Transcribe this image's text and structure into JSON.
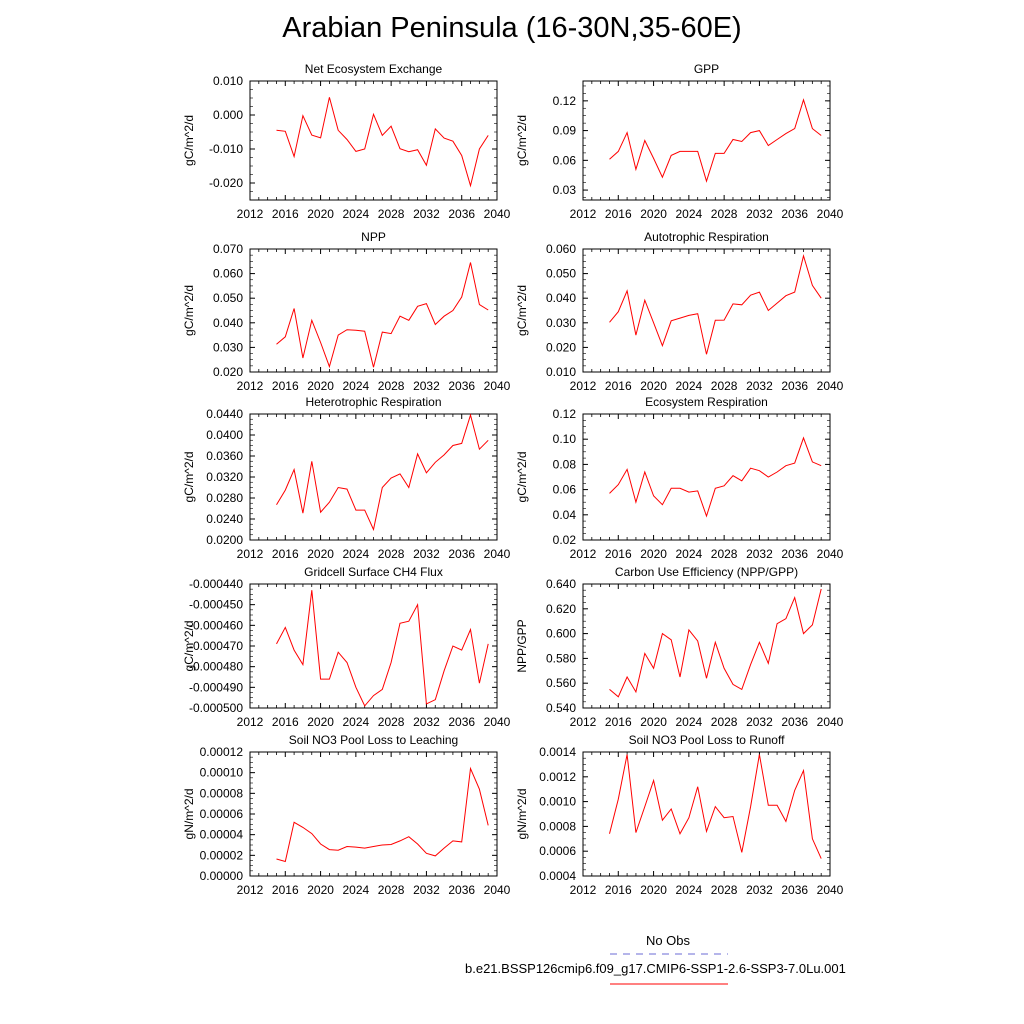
{
  "title": "Arabian Peninsula (16-30N,35-60E)",
  "colors": {
    "model": "#ff0000",
    "obs": "#6b6bd6",
    "axis": "#000000"
  },
  "legend": {
    "obs_label": "No Obs",
    "model_label": "b.e21.BSSP126cmip6.f09_g17.CMIP6-SSP1-2.6-SSP3-7.0Lu.001"
  },
  "chart_data": [
    {
      "type": "line",
      "title": "Net Ecosystem Exchange",
      "ylabel": "gC/m^2/d",
      "xlim": [
        2012,
        2040
      ],
      "ylim": [
        -0.025,
        0.01
      ],
      "xticks": [
        2012,
        2016,
        2020,
        2024,
        2028,
        2032,
        2036,
        2040
      ],
      "xtick_labels": [
        "2012",
        "2016",
        "2020",
        "2024",
        "2028",
        "2032",
        "2036",
        "2040"
      ],
      "yticks": [
        -0.02,
        -0.01,
        0.0,
        0.01
      ],
      "ytick_labels": [
        "-0.020",
        "-0.010",
        "0.000",
        "0.010"
      ],
      "x": [
        2015,
        2016,
        2017,
        2018,
        2019,
        2020,
        2021,
        2022,
        2023,
        2024,
        2025,
        2026,
        2027,
        2028,
        2029,
        2030,
        2031,
        2032,
        2033,
        2034,
        2035,
        2036,
        2037,
        2038,
        2039
      ],
      "series": [
        {
          "values": [
            -0.0045,
            -0.0048,
            -0.0122,
            -0.0002,
            -0.0059,
            -0.0067,
            0.0052,
            -0.0045,
            -0.0072,
            -0.0107,
            -0.01,
            0.0002,
            -0.006,
            -0.0033,
            -0.0099,
            -0.0108,
            -0.0102,
            -0.0148,
            -0.0041,
            -0.0068,
            -0.0077,
            -0.0119,
            -0.0208,
            -0.01,
            -0.006
          ]
        }
      ]
    },
    {
      "type": "line",
      "title": "GPP",
      "ylabel": "gC/m^2/d",
      "xlim": [
        2012,
        2040
      ],
      "ylim": [
        0.02,
        0.14
      ],
      "xticks": [
        2012,
        2016,
        2020,
        2024,
        2028,
        2032,
        2036,
        2040
      ],
      "xtick_labels": [
        "2012",
        "2016",
        "2020",
        "2024",
        "2028",
        "2032",
        "2036",
        "2040"
      ],
      "yticks": [
        0.03,
        0.06,
        0.09,
        0.12
      ],
      "ytick_labels": [
        "0.03",
        "0.06",
        "0.09",
        "0.12"
      ],
      "x": [
        2015,
        2016,
        2017,
        2018,
        2019,
        2020,
        2021,
        2022,
        2023,
        2024,
        2025,
        2026,
        2027,
        2028,
        2029,
        2030,
        2031,
        2032,
        2033,
        2034,
        2035,
        2036,
        2037,
        2038,
        2039
      ],
      "series": [
        {
          "values": [
            0.061,
            0.069,
            0.088,
            0.051,
            0.08,
            0.062,
            0.043,
            0.065,
            0.069,
            0.069,
            0.069,
            0.039,
            0.067,
            0.067,
            0.081,
            0.079,
            0.088,
            0.09,
            0.075,
            0.081,
            0.087,
            0.092,
            0.121,
            0.092,
            0.085
          ]
        }
      ]
    },
    {
      "type": "line",
      "title": "NPP",
      "ylabel": "gC/m^2/d",
      "xlim": [
        2012,
        2040
      ],
      "ylim": [
        0.02,
        0.07
      ],
      "xticks": [
        2012,
        2016,
        2020,
        2024,
        2028,
        2032,
        2036,
        2040
      ],
      "xtick_labels": [
        "2012",
        "2016",
        "2020",
        "2024",
        "2028",
        "2032",
        "2036",
        "2040"
      ],
      "yticks": [
        0.02,
        0.03,
        0.04,
        0.05,
        0.06,
        0.07
      ],
      "ytick_labels": [
        "0.020",
        "0.030",
        "0.040",
        "0.050",
        "0.060",
        "0.070"
      ],
      "x": [
        2015,
        2016,
        2017,
        2018,
        2019,
        2020,
        2021,
        2022,
        2023,
        2024,
        2025,
        2026,
        2027,
        2028,
        2029,
        2030,
        2031,
        2032,
        2033,
        2034,
        2035,
        2036,
        2037,
        2038,
        2039
      ],
      "series": [
        {
          "values": [
            0.0313,
            0.0343,
            0.0458,
            0.0257,
            0.041,
            0.032,
            0.0222,
            0.035,
            0.0372,
            0.037,
            0.0366,
            0.0219,
            0.0362,
            0.0356,
            0.0427,
            0.041,
            0.0467,
            0.0478,
            0.0393,
            0.0427,
            0.045,
            0.0505,
            0.0645,
            0.0474,
            0.0452
          ]
        }
      ]
    },
    {
      "type": "line",
      "title": "Autotrophic Respiration",
      "ylabel": "gC/m^2/d",
      "xlim": [
        2012,
        2040
      ],
      "ylim": [
        0.01,
        0.06
      ],
      "xticks": [
        2012,
        2016,
        2020,
        2024,
        2028,
        2032,
        2036,
        2040
      ],
      "xtick_labels": [
        "2012",
        "2016",
        "2020",
        "2024",
        "2028",
        "2032",
        "2036",
        "2040"
      ],
      "yticks": [
        0.01,
        0.02,
        0.03,
        0.04,
        0.05,
        0.06
      ],
      "ytick_labels": [
        "0.010",
        "0.020",
        "0.030",
        "0.040",
        "0.050",
        "0.060"
      ],
      "x": [
        2015,
        2016,
        2017,
        2018,
        2019,
        2020,
        2021,
        2022,
        2023,
        2024,
        2025,
        2026,
        2027,
        2028,
        2029,
        2030,
        2031,
        2032,
        2033,
        2034,
        2035,
        2036,
        2037,
        2038,
        2039
      ],
      "series": [
        {
          "values": [
            0.0302,
            0.0345,
            0.043,
            0.025,
            0.0392,
            0.03,
            0.0207,
            0.0308,
            0.0319,
            0.033,
            0.0337,
            0.0172,
            0.031,
            0.0311,
            0.0377,
            0.0373,
            0.0412,
            0.0425,
            0.035,
            0.038,
            0.041,
            0.0425,
            0.0572,
            0.0452,
            0.04
          ]
        }
      ]
    },
    {
      "type": "line",
      "title": "Heterotrophic Respiration",
      "ylabel": "gC/m^2/d",
      "xlim": [
        2012,
        2040
      ],
      "ylim": [
        0.02,
        0.044
      ],
      "xticks": [
        2012,
        2016,
        2020,
        2024,
        2028,
        2032,
        2036,
        2040
      ],
      "xtick_labels": [
        "2012",
        "2016",
        "2020",
        "2024",
        "2028",
        "2032",
        "2036",
        "2040"
      ],
      "yticks": [
        0.02,
        0.024,
        0.028,
        0.032,
        0.036,
        0.04,
        0.044
      ],
      "ytick_labels": [
        "0.0200",
        "0.0240",
        "0.0280",
        "0.0320",
        "0.0360",
        "0.0400",
        "0.0440"
      ],
      "x": [
        2015,
        2016,
        2017,
        2018,
        2019,
        2020,
        2021,
        2022,
        2023,
        2024,
        2025,
        2026,
        2027,
        2028,
        2029,
        2030,
        2031,
        2032,
        2033,
        2034,
        2035,
        2036,
        2037,
        2038,
        2039
      ],
      "series": [
        {
          "values": [
            0.0267,
            0.0295,
            0.0334,
            0.0251,
            0.035,
            0.0253,
            0.0272,
            0.03,
            0.0297,
            0.0257,
            0.0257,
            0.022,
            0.03,
            0.0318,
            0.0326,
            0.03,
            0.0364,
            0.0328,
            0.0348,
            0.0362,
            0.038,
            0.0384,
            0.0438,
            0.0373,
            0.039
          ]
        }
      ]
    },
    {
      "type": "line",
      "title": "Ecosystem Respiration",
      "ylabel": "gC/m^2/d",
      "xlim": [
        2012,
        2040
      ],
      "ylim": [
        0.02,
        0.12
      ],
      "xticks": [
        2012,
        2016,
        2020,
        2024,
        2028,
        2032,
        2036,
        2040
      ],
      "xtick_labels": [
        "2012",
        "2016",
        "2020",
        "2024",
        "2028",
        "2032",
        "2036",
        "2040"
      ],
      "yticks": [
        0.02,
        0.04,
        0.06,
        0.08,
        0.1,
        0.12
      ],
      "ytick_labels": [
        "0.02",
        "0.04",
        "0.06",
        "0.08",
        "0.10",
        "0.12"
      ],
      "x": [
        2015,
        2016,
        2017,
        2018,
        2019,
        2020,
        2021,
        2022,
        2023,
        2024,
        2025,
        2026,
        2027,
        2028,
        2029,
        2030,
        2031,
        2032,
        2033,
        2034,
        2035,
        2036,
        2037,
        2038,
        2039
      ],
      "series": [
        {
          "values": [
            0.057,
            0.064,
            0.076,
            0.05,
            0.074,
            0.055,
            0.048,
            0.061,
            0.061,
            0.058,
            0.059,
            0.039,
            0.061,
            0.063,
            0.071,
            0.067,
            0.077,
            0.075,
            0.07,
            0.074,
            0.079,
            0.081,
            0.101,
            0.082,
            0.079
          ]
        }
      ]
    },
    {
      "type": "line",
      "title": "Gridcell Surface CH4 Flux",
      "ylabel": "gC/m^2/d",
      "xlim": [
        2012,
        2040
      ],
      "ylim": [
        -0.0005,
        -0.00044
      ],
      "xticks": [
        2012,
        2016,
        2020,
        2024,
        2028,
        2032,
        2036,
        2040
      ],
      "xtick_labels": [
        "2012",
        "2016",
        "2020",
        "2024",
        "2028",
        "2032",
        "2036",
        "2040"
      ],
      "yticks": [
        -0.0005,
        -0.00049,
        -0.00048,
        -0.00047,
        -0.00046,
        -0.00045,
        -0.00044
      ],
      "ytick_labels": [
        "-0.000500",
        "-0.000490",
        "-0.000480",
        "-0.000470",
        "-0.000460",
        "-0.000450",
        "-0.000440"
      ],
      "x": [
        2015,
        2016,
        2017,
        2018,
        2019,
        2020,
        2021,
        2022,
        2023,
        2024,
        2025,
        2026,
        2027,
        2028,
        2029,
        2030,
        2031,
        2032,
        2033,
        2034,
        2035,
        2036,
        2037,
        2038,
        2039
      ],
      "series": [
        {
          "values": [
            -0.000469,
            -0.000461,
            -0.000472,
            -0.000479,
            -0.000443,
            -0.000486,
            -0.000486,
            -0.000473,
            -0.000478,
            -0.00049,
            -0.000499,
            -0.000494,
            -0.000491,
            -0.000478,
            -0.000459,
            -0.000458,
            -0.00045,
            -0.000498,
            -0.000496,
            -0.000482,
            -0.00047,
            -0.000472,
            -0.000462,
            -0.000488,
            -0.000469
          ]
        }
      ]
    },
    {
      "type": "line",
      "title": "Carbon Use Efficiency (NPP/GPP)",
      "ylabel": "NPP/GPP",
      "xlim": [
        2012,
        2040
      ],
      "ylim": [
        0.54,
        0.64
      ],
      "xticks": [
        2012,
        2016,
        2020,
        2024,
        2028,
        2032,
        2036,
        2040
      ],
      "xtick_labels": [
        "2012",
        "2016",
        "2020",
        "2024",
        "2028",
        "2032",
        "2036",
        "2040"
      ],
      "yticks": [
        0.54,
        0.56,
        0.58,
        0.6,
        0.62,
        0.64
      ],
      "ytick_labels": [
        "0.540",
        "0.560",
        "0.580",
        "0.600",
        "0.620",
        "0.640"
      ],
      "x": [
        2015,
        2016,
        2017,
        2018,
        2019,
        2020,
        2021,
        2022,
        2023,
        2024,
        2025,
        2026,
        2027,
        2028,
        2029,
        2030,
        2031,
        2032,
        2033,
        2034,
        2035,
        2036,
        2037,
        2038,
        2039
      ],
      "series": [
        {
          "values": [
            0.555,
            0.549,
            0.565,
            0.553,
            0.584,
            0.572,
            0.6,
            0.595,
            0.565,
            0.603,
            0.594,
            0.564,
            0.593,
            0.572,
            0.559,
            0.555,
            0.575,
            0.593,
            0.576,
            0.608,
            0.612,
            0.629,
            0.6,
            0.607,
            0.636
          ]
        }
      ]
    },
    {
      "type": "line",
      "title": "Soil NO3 Pool Loss to Leaching",
      "ylabel": "gN/m^2/d",
      "xlim": [
        2012,
        2040
      ],
      "ylim": [
        0.0,
        0.00012
      ],
      "xticks": [
        2012,
        2016,
        2020,
        2024,
        2028,
        2032,
        2036,
        2040
      ],
      "xtick_labels": [
        "2012",
        "2016",
        "2020",
        "2024",
        "2028",
        "2032",
        "2036",
        "2040"
      ],
      "yticks": [
        0.0,
        2e-05,
        4e-05,
        6e-05,
        8e-05,
        0.0001,
        0.00012
      ],
      "ytick_labels": [
        "0.00000",
        "0.00002",
        "0.00004",
        "0.00006",
        "0.00008",
        "0.00010",
        "0.00012"
      ],
      "x": [
        2015,
        2016,
        2017,
        2018,
        2019,
        2020,
        2021,
        2022,
        2023,
        2024,
        2025,
        2026,
        2027,
        2028,
        2029,
        2030,
        2031,
        2032,
        2033,
        2034,
        2035,
        2036,
        2037,
        2038,
        2039
      ],
      "series": [
        {
          "values": [
            1.65e-05,
            1.4e-05,
            5.2e-05,
            4.7e-05,
            4.1e-05,
            3.1e-05,
            2.55e-05,
            2.5e-05,
            2.85e-05,
            2.8e-05,
            2.7e-05,
            2.85e-05,
            3e-05,
            3.05e-05,
            3.4e-05,
            3.8e-05,
            3.1e-05,
            2.2e-05,
            1.95e-05,
            2.7e-05,
            3.4e-05,
            3.3e-05,
            0.000104,
            8.4e-05,
            4.9e-05
          ]
        }
      ]
    },
    {
      "type": "line",
      "title": "Soil NO3 Pool Loss to Runoff",
      "ylabel": "gN/m^2/d",
      "xlim": [
        2012,
        2040
      ],
      "ylim": [
        0.0004,
        0.0014
      ],
      "xticks": [
        2012,
        2016,
        2020,
        2024,
        2028,
        2032,
        2036,
        2040
      ],
      "xtick_labels": [
        "2012",
        "2016",
        "2020",
        "2024",
        "2028",
        "2032",
        "2036",
        "2040"
      ],
      "yticks": [
        0.0004,
        0.0006,
        0.0008,
        0.001,
        0.0012,
        0.0014
      ],
      "ytick_labels": [
        "0.0004",
        "0.0006",
        "0.0008",
        "0.0010",
        "0.0012",
        "0.0014"
      ],
      "x": [
        2015,
        2016,
        2017,
        2018,
        2019,
        2020,
        2021,
        2022,
        2023,
        2024,
        2025,
        2026,
        2027,
        2028,
        2029,
        2030,
        2031,
        2032,
        2033,
        2034,
        2035,
        2036,
        2037,
        2038,
        2039
      ],
      "series": [
        {
          "values": [
            0.00074,
            0.00102,
            0.00138,
            0.00075,
            0.00096,
            0.00117,
            0.00085,
            0.00094,
            0.00074,
            0.00087,
            0.00112,
            0.00076,
            0.00096,
            0.00087,
            0.00088,
            0.00059,
            0.00096,
            0.00138,
            0.00097,
            0.00097,
            0.00084,
            0.00109,
            0.00125,
            0.0007,
            0.00054
          ]
        }
      ]
    }
  ]
}
